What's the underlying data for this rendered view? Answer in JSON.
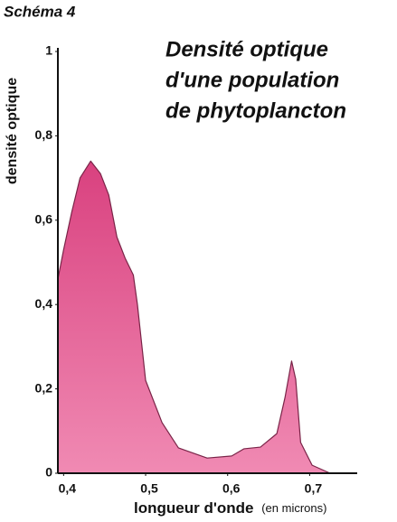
{
  "chart_data": {
    "type": "area",
    "label": "Schéma 4",
    "title": [
      "Densité optique",
      "d'une population",
      "de phytoplancton"
    ],
    "ylabel": "densité optique",
    "xlabel": "longueur d'onde",
    "xlabel_unit": "(en microns)",
    "color": "#e0558f",
    "x": [
      0.393,
      0.4,
      0.41,
      0.42,
      0.433,
      0.445,
      0.455,
      0.465,
      0.475,
      0.485,
      0.49,
      0.5,
      0.52,
      0.54,
      0.575,
      0.605,
      0.62,
      0.64,
      0.66,
      0.67,
      0.678,
      0.683,
      0.689,
      0.703,
      0.725
    ],
    "values": [
      0.46,
      0.53,
      0.62,
      0.7,
      0.74,
      0.71,
      0.66,
      0.56,
      0.51,
      0.47,
      0.4,
      0.22,
      0.12,
      0.06,
      0.036,
      0.041,
      0.058,
      0.062,
      0.094,
      0.18,
      0.266,
      0.223,
      0.073,
      0.019,
      0
    ],
    "xlim": [
      0.393,
      0.758
    ],
    "ylim": [
      0,
      1
    ],
    "xticks": [
      {
        "value": 0.4,
        "label": "0,4"
      },
      {
        "value": 0.5,
        "label": "0,5"
      },
      {
        "value": 0.6,
        "label": "0,6"
      },
      {
        "value": 0.7,
        "label": "0,7"
      }
    ],
    "yticks": [
      0,
      {
        "value": 0.2,
        "label": "0,2"
      },
      {
        "value": 0.4,
        "label": "0,4"
      },
      {
        "value": 0.6,
        "label": "0,6"
      },
      {
        "value": 0.8,
        "label": "0,8"
      },
      1
    ]
  }
}
